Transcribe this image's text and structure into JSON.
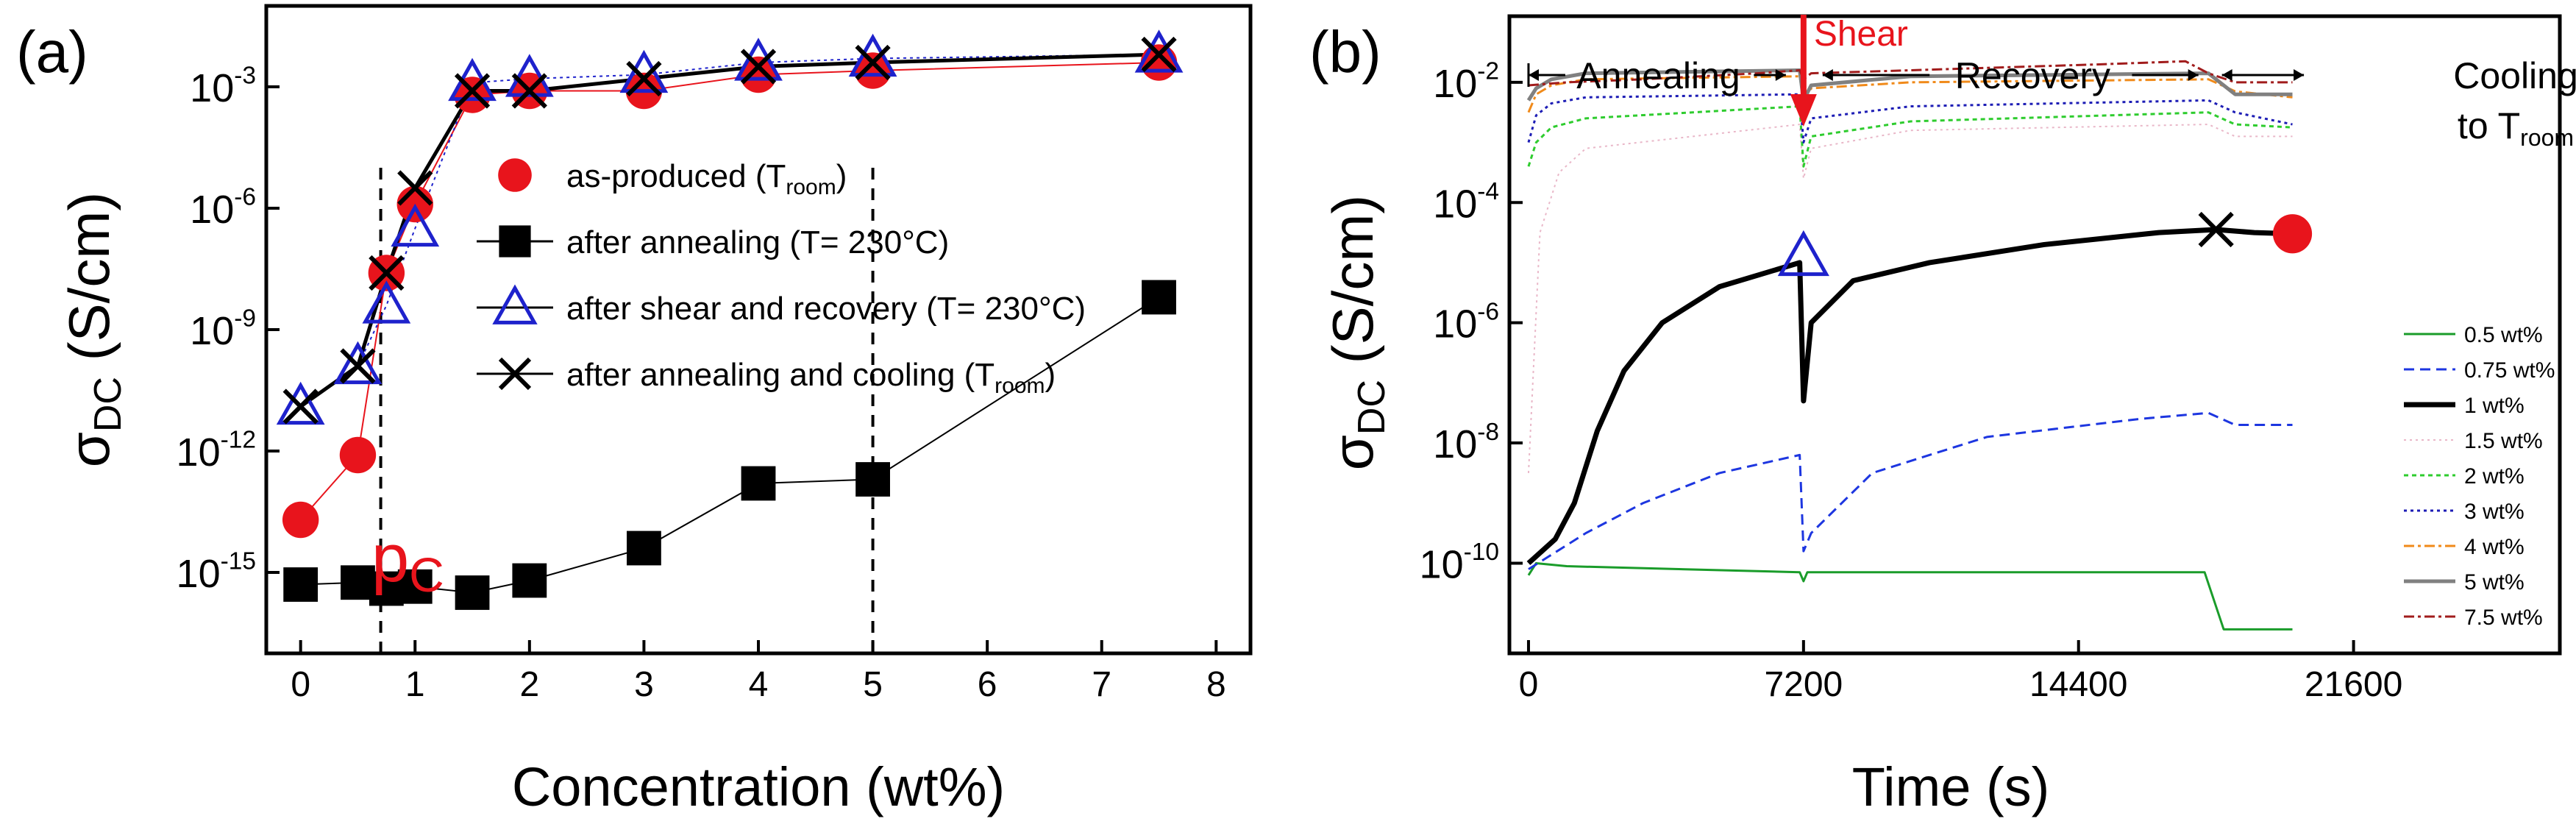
{
  "chart_data": [
    {
      "type": "scatter",
      "panel_label": "(a)",
      "xlabel": "Concentration (wt%)",
      "ylabel": {
        "main": "σ",
        "sub": "DC",
        "unit": " (S/cm)"
      },
      "xlim": [
        -0.3,
        8.3
      ],
      "ylim_log10": [
        -17,
        -1
      ],
      "xticks": [
        0,
        1,
        2,
        3,
        4,
        5,
        6,
        7,
        8
      ],
      "yticks": [
        {
          "exp": -15,
          "label": "10",
          "sup": "-15"
        },
        {
          "exp": -12,
          "label": "10",
          "sup": "-12"
        },
        {
          "exp": -9,
          "label": "10",
          "sup": "-9"
        },
        {
          "exp": -6,
          "label": "10",
          "sup": "-6"
        },
        {
          "exp": -3,
          "label": "10",
          "sup": "-3"
        }
      ],
      "series": [
        {
          "name": "as-produced",
          "sub": "room",
          "legend_tail": ")",
          "prefix": " (T",
          "marker": "circle",
          "color": "#e8141c",
          "line": "#e8141c",
          "x": [
            0,
            0.5,
            0.75,
            1,
            1.5,
            2,
            3,
            4,
            5,
            7.5
          ],
          "log10y": [
            -13.7,
            -12.1,
            -7.6,
            -5.9,
            -3.2,
            -3.1,
            -3.1,
            -2.7,
            -2.6,
            -2.4
          ]
        },
        {
          "name": "after annealing (T= 230°C)",
          "marker": "square",
          "color": "#000000",
          "line": "#000000",
          "x": [
            0,
            0.5,
            0.75,
            1,
            1.5,
            2,
            3,
            4,
            5,
            7.5
          ],
          "log10y": [
            -15.3,
            -15.25,
            -15.4,
            -15.35,
            -15.5,
            -15.2,
            -14.4,
            -12.8,
            -12.7,
            -8.2
          ]
        },
        {
          "name": "after shear and recovery (T= 230°C)",
          "marker": "triangle",
          "color": "#1e22cc",
          "line": "#1e22cc",
          "x": [
            0,
            0.5,
            0.75,
            1,
            1.5,
            2,
            3,
            4,
            5,
            7.5
          ],
          "log10y": [
            -10.9,
            -9.9,
            -8.4,
            -6.5,
            -2.9,
            -2.8,
            -2.7,
            -2.4,
            -2.3,
            -2.2
          ]
        },
        {
          "name": "after annealing and cooling",
          "sub": "room",
          "legend_tail": ")",
          "prefix": " (T",
          "marker": "x",
          "color": "#000000",
          "line": "#000000",
          "x": [
            0,
            0.5,
            0.75,
            1,
            1.5,
            2,
            3,
            4,
            5,
            7.5
          ],
          "log10y": [
            -10.9,
            -9.9,
            -7.6,
            -5.5,
            -3.1,
            -3.1,
            -2.8,
            -2.5,
            -2.4,
            -2.2
          ]
        }
      ],
      "annotation": {
        "text": "p",
        "sub": "C",
        "color": "#e8141c"
      },
      "vlines": [
        0.7,
        5
      ]
    },
    {
      "type": "line",
      "panel_label": "(b)",
      "xlabel": "Time (s)",
      "ylabel": {
        "main": "σ",
        "sub": "DC",
        "unit": " (S/cm)"
      },
      "xlim": [
        -500,
        27000
      ],
      "ylim_log10": [
        -11.5,
        -0.9
      ],
      "xticks": [
        0,
        7200,
        14400,
        21600
      ],
      "yticks": [
        {
          "exp": -10,
          "label": "10",
          "sup": "-10"
        },
        {
          "exp": -8,
          "label": "10",
          "sup": "-8"
        },
        {
          "exp": -6,
          "label": "10",
          "sup": "-6"
        },
        {
          "exp": -4,
          "label": "10",
          "sup": "-4"
        },
        {
          "exp": -2,
          "label": "10",
          "sup": "-2"
        }
      ],
      "phases": {
        "annealing": "Annealing",
        "shear": "Shear",
        "recovery": "Recovery",
        "cooling": "Cooling",
        "cooling_to": "to T",
        "cooling_sub": "room"
      },
      "shear_time": 7200,
      "cooling_start": 18000,
      "series": [
        {
          "name": "0.5 wt%",
          "color": "#1a9c2a",
          "dash": "none",
          "width": 3,
          "t": [
            0,
            200,
            1000,
            7100,
            7200,
            7300,
            17700,
            18200,
            20000
          ],
          "log10y": [
            -10.2,
            -10.0,
            -10.05,
            -10.15,
            -10.3,
            -10.15,
            -10.15,
            -11.1,
            -11.1
          ]
        },
        {
          "name": "0.75 wt%",
          "color": "#1d36e0",
          "dash": "14,8",
          "width": 3,
          "t": [
            0,
            500,
            1500,
            3000,
            5000,
            7100,
            7200,
            7400,
            9000,
            12000,
            16000,
            17800,
            18500,
            20000
          ],
          "log10y": [
            -10.1,
            -9.9,
            -9.5,
            -9.0,
            -8.5,
            -8.2,
            -9.8,
            -9.5,
            -8.5,
            -7.9,
            -7.6,
            -7.5,
            -7.7,
            -7.7
          ]
        },
        {
          "name": "1 wt%",
          "color": "#000000",
          "dash": "none",
          "width": 7,
          "t": [
            0,
            700,
            1200,
            1800,
            2500,
            3500,
            5000,
            7100,
            7200,
            7400,
            8500,
            10500,
            13500,
            16500,
            18000,
            19000,
            20000
          ],
          "log10y": [
            -10.0,
            -9.6,
            -9.0,
            -7.8,
            -6.8,
            -6.0,
            -5.4,
            -5.0,
            -7.3,
            -6.0,
            -5.3,
            -5.0,
            -4.7,
            -4.5,
            -4.45,
            -4.5,
            -4.52
          ]
        },
        {
          "name": "1.5 wt%",
          "color": "#e9b7c8",
          "dash": "3,5",
          "width": 2,
          "t": [
            0,
            300,
            800,
            1500,
            7100,
            7200,
            7400,
            10000,
            17800,
            18500,
            20000
          ],
          "log10y": [
            -8.5,
            -4.5,
            -3.5,
            -3.1,
            -2.7,
            -3.6,
            -3.1,
            -2.8,
            -2.7,
            -2.9,
            -2.9
          ]
        },
        {
          "name": "2 wt%",
          "color": "#2ecc2e",
          "dash": "6,5",
          "width": 3,
          "t": [
            0,
            200,
            600,
            1500,
            7100,
            7200,
            7400,
            10000,
            17800,
            18500,
            20000
          ],
          "log10y": [
            -3.4,
            -3.0,
            -2.75,
            -2.6,
            -2.4,
            -3.4,
            -2.9,
            -2.65,
            -2.5,
            -2.7,
            -2.75
          ]
        },
        {
          "name": "3 wt%",
          "color": "#1d1db5",
          "dash": "4,5",
          "width": 3,
          "t": [
            0,
            200,
            600,
            1500,
            7100,
            7200,
            7400,
            10000,
            17800,
            18500,
            20000
          ],
          "log10y": [
            -3.0,
            -2.55,
            -2.35,
            -2.25,
            -2.2,
            -3.0,
            -2.6,
            -2.4,
            -2.3,
            -2.5,
            -2.7
          ]
        },
        {
          "name": "4 wt%",
          "color": "#f08a1a",
          "dash": "14,5,4,5",
          "width": 3,
          "t": [
            0,
            200,
            600,
            1500,
            7100,
            7200,
            7400,
            10000,
            17800,
            18500,
            20000
          ],
          "log10y": [
            -2.5,
            -2.2,
            -2.05,
            -1.95,
            -1.9,
            -2.3,
            -2.1,
            -2.0,
            -1.95,
            -2.15,
            -2.25
          ]
        },
        {
          "name": "5 wt%",
          "color": "#808080",
          "dash": "none",
          "width": 5,
          "t": [
            0,
            200,
            600,
            1500,
            7100,
            7200,
            7400,
            10000,
            17800,
            18500,
            20000
          ],
          "log10y": [
            -2.3,
            -2.1,
            -1.95,
            -1.85,
            -1.8,
            -2.3,
            -2.05,
            -1.9,
            -1.85,
            -2.2,
            -2.2
          ]
        },
        {
          "name": "7.5 wt%",
          "color": "#a11c1c",
          "dash": "14,5,4,5",
          "width": 3,
          "t": [
            0,
            1000,
            3000,
            6000,
            7100,
            7200,
            7400,
            10000,
            15000,
            17200,
            17800,
            18500,
            20000
          ],
          "log10y": [
            -2.05,
            -2.0,
            -1.95,
            -1.85,
            -1.8,
            -1.95,
            -1.85,
            -1.8,
            -1.7,
            -1.65,
            -1.85,
            -2.0,
            -2.0
          ]
        }
      ],
      "markers": [
        {
          "t": 7200,
          "log10y": -4.9,
          "shape": "triangle",
          "color": "#1e22cc"
        },
        {
          "t": 18000,
          "log10y": -4.45,
          "shape": "x",
          "color": "#000000"
        },
        {
          "t": 20000,
          "log10y": -4.52,
          "shape": "circle",
          "color": "#e8141c"
        }
      ]
    }
  ]
}
